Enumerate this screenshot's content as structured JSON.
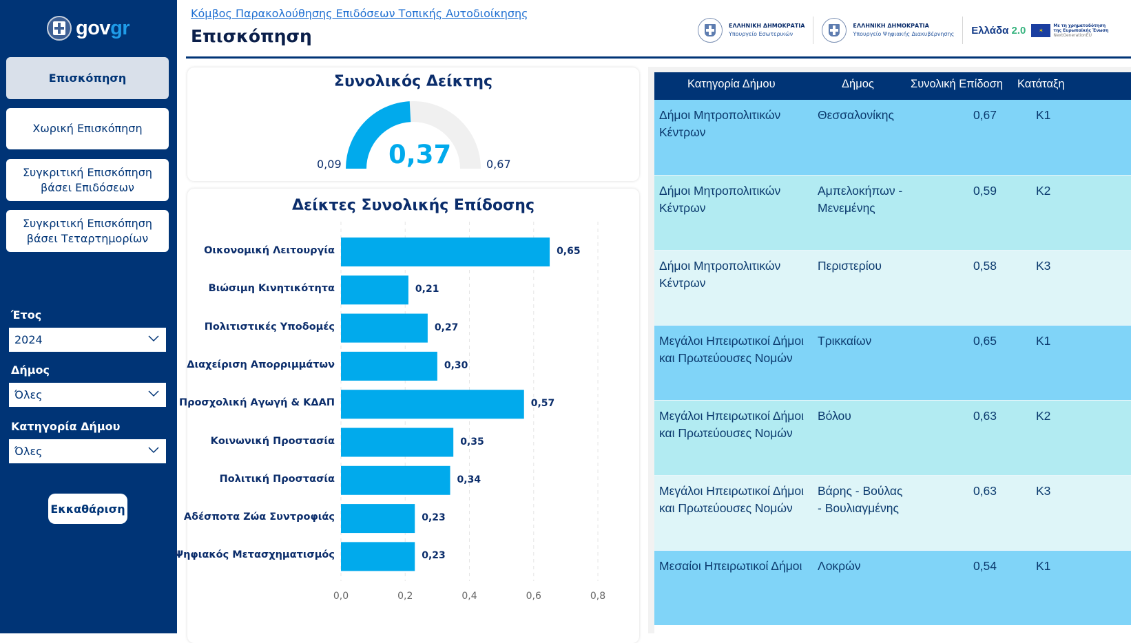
{
  "sidebar": {
    "logo": {
      "word_main": "gov",
      "word_accent": "gr"
    },
    "nav": [
      {
        "label": "Επισκόπηση",
        "active": true
      },
      {
        "label": "Χωρική Επισκόπηση",
        "active": false
      },
      {
        "label": "Συγκριτική Επισκόπηση βάσει Επιδόσεων",
        "active": false
      },
      {
        "label": "Συγκριτική Επισκόπηση βάσει Τεταρτημορίων",
        "active": false
      }
    ],
    "filters": [
      {
        "label": "Έτος",
        "value": "2024"
      },
      {
        "label": "Δήμος",
        "value": "Όλες"
      },
      {
        "label": "Κατηγορία Δήμου",
        "value": "Όλες"
      }
    ],
    "clear_label": "Εκκαθάριση"
  },
  "header": {
    "breadcrumb": "Κόμβος Παρακολούθησης Επιδόσεων Τοπικής Αυτοδιοίκησης",
    "title": "Επισκόπηση",
    "logos": [
      {
        "line1": "ΕΛΛΗΝΙΚΗ ΔΗΜΟΚΡΑΤΙΑ",
        "line2": "Υπουργείο Εσωτερικών"
      },
      {
        "line1": "ΕΛΛΗΝΙΚΗ ΔΗΜΟΚΡΑΤΙΑ",
        "line2": "Υπουργείο Ψηφιακής Διακυβέρνησης"
      }
    ],
    "ellada": {
      "text": "Ελλάδα",
      "version": "2.0"
    },
    "eu": {
      "line1": "Με τη χρηματοδότηση",
      "line2": "της Ευρωπαϊκής Ένωσης",
      "line3": "NextGenerationEU"
    }
  },
  "gauge": {
    "title": "Συνολικός Δείκτης",
    "value": 0.37,
    "value_label": "0,37",
    "min": 0.09,
    "min_label": "0,09",
    "max": 0.67,
    "max_label": "0,67",
    "fill_color": "#01aaec",
    "track_color": "#f0f0f0"
  },
  "chart_data": {
    "type": "bar",
    "orientation": "horizontal",
    "title": "Δείκτες Συνολικής Επίδοσης",
    "categories": [
      "Οικονομική Λειτουργία",
      "Βιώσιμη Κινητικότητα",
      "Πολιτιστικές Υποδομές",
      "Διαχείριση Απορριμμάτων",
      "Προσχολική Αγωγή & ΚΔΑΠ",
      "Κοινωνική Προστασία",
      "Πολιτική Προστασία",
      "Αδέσποτα Ζώα Συντροφιάς",
      "Ψηφιακός Μετασχηματισμός"
    ],
    "values": [
      0.65,
      0.21,
      0.27,
      0.3,
      0.57,
      0.35,
      0.34,
      0.23,
      0.23
    ],
    "value_labels": [
      "0,65",
      "0,21",
      "0,27",
      "0,30",
      "0,57",
      "0,35",
      "0,34",
      "0,23",
      "0,23"
    ],
    "xlim": [
      0,
      0.8
    ],
    "xticks": [
      0,
      0.2,
      0.4,
      0.6,
      0.8
    ],
    "xtick_labels": [
      "0,0",
      "0,2",
      "0,4",
      "0,6",
      "0,8"
    ],
    "xlabel": "",
    "ylabel": "",
    "grid": true,
    "bar_color": "#01aaec"
  },
  "table": {
    "columns": [
      "Κατηγορία Δήμου",
      "Δήμος",
      "Συνολική Επίδοση",
      "Κατάταξη"
    ],
    "rows": [
      {
        "category": "Δήμοι Μητροπολιτικών Κέντρων",
        "municipality": "Θεσσαλονίκης",
        "score": "0,67",
        "rank": "Κ1",
        "bg": "#80d4f8"
      },
      {
        "category": "Δήμοι Μητροπολιτικών Κέντρων",
        "municipality": "Αμπελοκήπων - Μενεμένης",
        "score": "0,59",
        "rank": "Κ2",
        "bg": "#b2ebf2"
      },
      {
        "category": "Δήμοι Μητροπολιτικών Κέντρων",
        "municipality": "Περιστερίου",
        "score": "0,58",
        "rank": "Κ3",
        "bg": "#def5f8"
      },
      {
        "category": "Μεγάλοι Ηπειρωτικοί Δήμοι και Πρωτεύουσες Νομών",
        "municipality": "Τρικκαίων",
        "score": "0,65",
        "rank": "Κ1",
        "bg": "#80d4f8"
      },
      {
        "category": "Μεγάλοι Ηπειρωτικοί Δήμοι και Πρωτεύουσες Νομών",
        "municipality": "Βόλου",
        "score": "0,63",
        "rank": "Κ2",
        "bg": "#b2ebf2"
      },
      {
        "category": "Μεγάλοι Ηπειρωτικοί Δήμοι και Πρωτεύουσες Νομών",
        "municipality": "Βάρης - Βούλας - Βουλιαγμένης",
        "score": "0,63",
        "rank": "Κ3",
        "bg": "#def5f8"
      },
      {
        "category": "Μεσαίοι Ηπειρωτικοί Δήμοι",
        "municipality": "Λοκρών",
        "score": "0,54",
        "rank": "Κ1",
        "bg": "#80d4f8"
      }
    ]
  }
}
